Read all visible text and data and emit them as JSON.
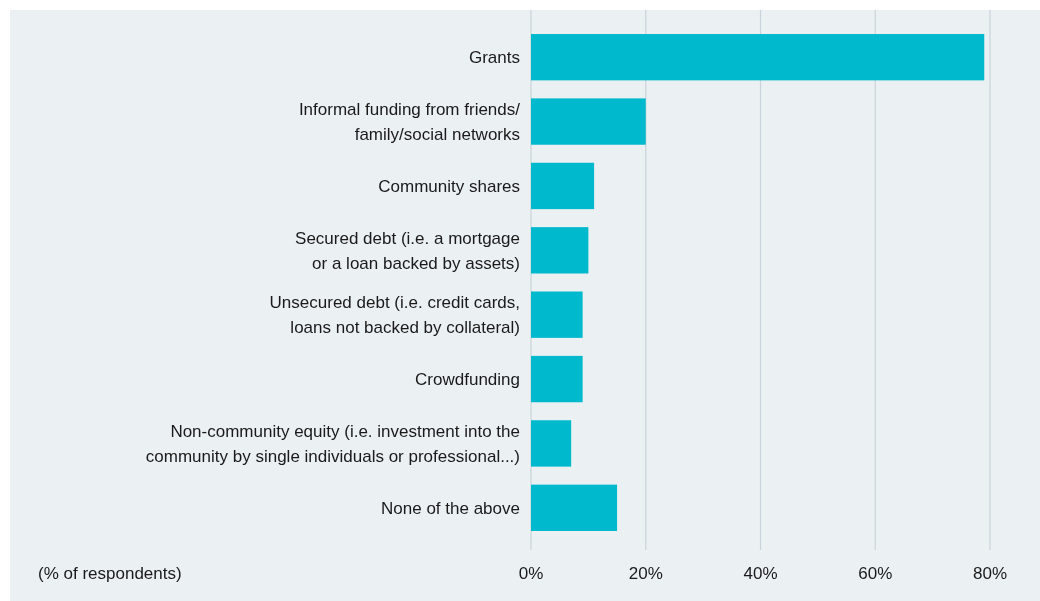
{
  "chart_data": {
    "type": "bar",
    "orientation": "horizontal",
    "xlabel": "(% of respondents)",
    "categories": [
      "Grants",
      "Informal funding from friends/ family/social networks",
      "Community shares",
      "Secured debt (i.e. a mortgage or a loan backed by assets)",
      "Unsecured debt (i.e. credit cards, loans not backed by collateral)",
      "Crowdfunding",
      "Non-community equity (i.e. investment into the community by single individuals or professional...)",
      "None of the above"
    ],
    "values": [
      79,
      20,
      11,
      10,
      9,
      9,
      7,
      15
    ],
    "color": "#00b9cd",
    "xlim": [
      0,
      80
    ],
    "xticks": [
      {
        "value": 0,
        "label": "0%"
      },
      {
        "value": 20,
        "label": "20%"
      },
      {
        "value": 40,
        "label": "40%"
      },
      {
        "value": 60,
        "label": "60%"
      },
      {
        "value": 80,
        "label": "80%"
      }
    ],
    "grid": "x"
  }
}
